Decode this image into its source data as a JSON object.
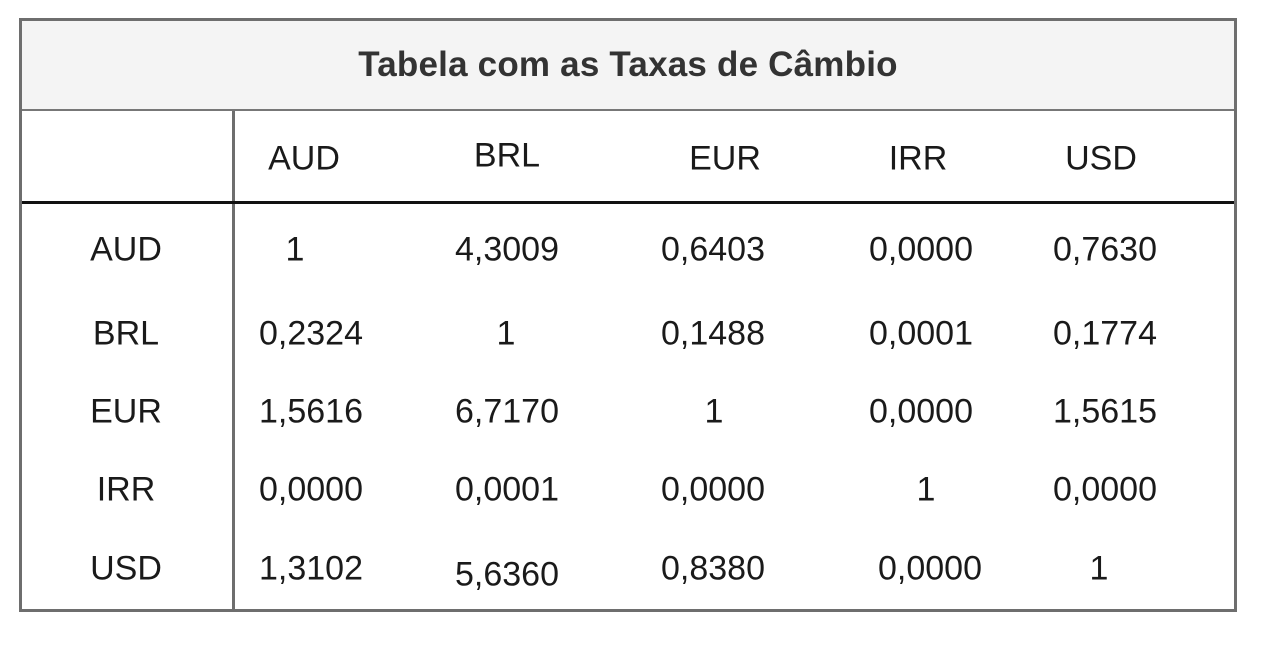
{
  "title": "Tabela com as Taxas de Câmbio",
  "columns": [
    "AUD",
    "BRL",
    "EUR",
    "IRR",
    "USD"
  ],
  "rows": [
    {
      "label": "AUD",
      "values": [
        "1",
        "4,3009",
        "0,6403",
        "0,0000",
        "0,7630"
      ]
    },
    {
      "label": "BRL",
      "values": [
        "0,2324",
        "1",
        "0,1488",
        "0,0001",
        "0,1774"
      ]
    },
    {
      "label": "EUR",
      "values": [
        "1,5616",
        "6,7170",
        "1",
        "0,0000",
        "1,5615"
      ]
    },
    {
      "label": "IRR",
      "values": [
        "0,0000",
        "0,0001",
        "0,0000",
        "1",
        "0,0000"
      ]
    },
    {
      "label": "USD",
      "values": [
        "1,3102",
        "5,6360",
        "0,8380",
        "0,0000",
        "1"
      ]
    }
  ]
}
